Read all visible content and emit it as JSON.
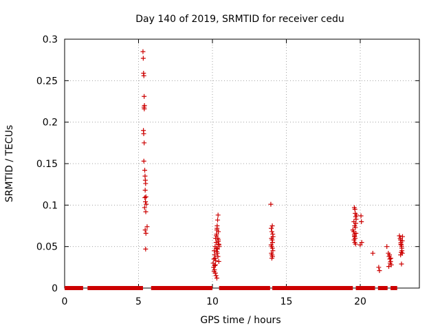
{
  "chart_data": {
    "type": "scatter",
    "title": "Day 140 of 2019, SRMTID for receiver cedu",
    "xlabel": "GPS time / hours",
    "ylabel": "SRMTID / TECUs",
    "xlim": [
      0,
      24
    ],
    "ylim": [
      0,
      0.3
    ],
    "xticks": [
      0,
      5,
      10,
      15,
      20
    ],
    "yticks": [
      0,
      0.05,
      0.1,
      0.15,
      0.2,
      0.25,
      0.3
    ],
    "xtick_labels": [
      "0",
      "5",
      "10",
      "15",
      "20"
    ],
    "ytick_labels": [
      "0",
      "0.05",
      "0.1",
      "0.15",
      "0.2",
      "0.25",
      "0.3"
    ],
    "grid": true,
    "marker": "+",
    "color": "#cc0000",
    "baseline_segments": [
      [
        0.0,
        1.25
      ],
      [
        1.55,
        5.3
      ],
      [
        5.85,
        10.0
      ],
      [
        10.45,
        13.9
      ],
      [
        14.05,
        19.5
      ],
      [
        19.7,
        21.0
      ],
      [
        21.2,
        21.85
      ],
      [
        22.05,
        22.5
      ]
    ],
    "series": [
      {
        "name": "SRMTID",
        "x": [
          5.3,
          5.32,
          5.34,
          5.36,
          5.38,
          5.4,
          5.37,
          5.39,
          5.33,
          5.35,
          5.38,
          5.36,
          5.42,
          5.44,
          5.46,
          5.48,
          5.45,
          5.5,
          5.43,
          5.47,
          5.52,
          5.41,
          5.49,
          5.45,
          5.58,
          5.5,
          5.48,
          10.05,
          10.1,
          10.15,
          10.12,
          10.2,
          10.18,
          10.25,
          10.22,
          10.28,
          10.3,
          10.32,
          10.35,
          10.38,
          10.4,
          10.42,
          10.45,
          10.27,
          10.33,
          10.37,
          10.43,
          10.08,
          10.14,
          10.2,
          10.24,
          10.3,
          10.36,
          10.26,
          10.31,
          10.4,
          10.18,
          10.22,
          10.29,
          10.11,
          10.34,
          10.39,
          10.15,
          10.44,
          13.95,
          13.98,
          14.02,
          14.05,
          14.08,
          14.1,
          14.0,
          14.04,
          14.07,
          13.97,
          14.01,
          14.06,
          14.09,
          13.99,
          14.03,
          14.06,
          14.02,
          19.5,
          19.55,
          19.6,
          19.62,
          19.65,
          19.58,
          19.63,
          19.68,
          19.7,
          19.72,
          19.66,
          19.6,
          19.64,
          19.69,
          19.57,
          19.62,
          19.67,
          19.71,
          19.61,
          19.74,
          20.05,
          20.08,
          20.1,
          20.0,
          20.85,
          21.25,
          21.3,
          21.8,
          21.9,
          21.95,
          22.0,
          22.05,
          22.1,
          21.93,
          22.02,
          21.98,
          22.07,
          22.65,
          22.7,
          22.72,
          22.75,
          22.78,
          22.8,
          22.82,
          22.85,
          22.73,
          22.77,
          22.81,
          22.86,
          22.74,
          22.84,
          22.79
        ],
        "y": [
          0.285,
          0.277,
          0.259,
          0.256,
          0.231,
          0.22,
          0.218,
          0.216,
          0.19,
          0.186,
          0.175,
          0.153,
          0.142,
          0.135,
          0.13,
          0.126,
          0.118,
          0.11,
          0.109,
          0.104,
          0.101,
          0.097,
          0.092,
          0.07,
          0.074,
          0.066,
          0.047,
          0.03,
          0.035,
          0.04,
          0.045,
          0.028,
          0.05,
          0.055,
          0.06,
          0.065,
          0.07,
          0.075,
          0.082,
          0.088,
          0.058,
          0.053,
          0.05,
          0.048,
          0.042,
          0.038,
          0.032,
          0.025,
          0.022,
          0.018,
          0.015,
          0.012,
          0.06,
          0.063,
          0.072,
          0.068,
          0.036,
          0.033,
          0.044,
          0.02,
          0.047,
          0.056,
          0.027,
          0.052,
          0.101,
          0.072,
          0.068,
          0.075,
          0.065,
          0.062,
          0.06,
          0.058,
          0.055,
          0.052,
          0.05,
          0.048,
          0.045,
          0.042,
          0.04,
          0.038,
          0.036,
          0.07,
          0.068,
          0.065,
          0.062,
          0.06,
          0.058,
          0.055,
          0.053,
          0.078,
          0.083,
          0.09,
          0.097,
          0.095,
          0.086,
          0.08,
          0.075,
          0.073,
          0.066,
          0.063,
          0.088,
          0.087,
          0.08,
          0.055,
          0.052,
          0.042,
          0.025,
          0.021,
          0.05,
          0.042,
          0.038,
          0.035,
          0.032,
          0.028,
          0.026,
          0.03,
          0.04,
          0.036,
          0.063,
          0.06,
          0.058,
          0.055,
          0.052,
          0.05,
          0.045,
          0.042,
          0.04,
          0.043,
          0.048,
          0.062,
          0.053,
          0.057,
          0.029
        ]
      }
    ]
  }
}
